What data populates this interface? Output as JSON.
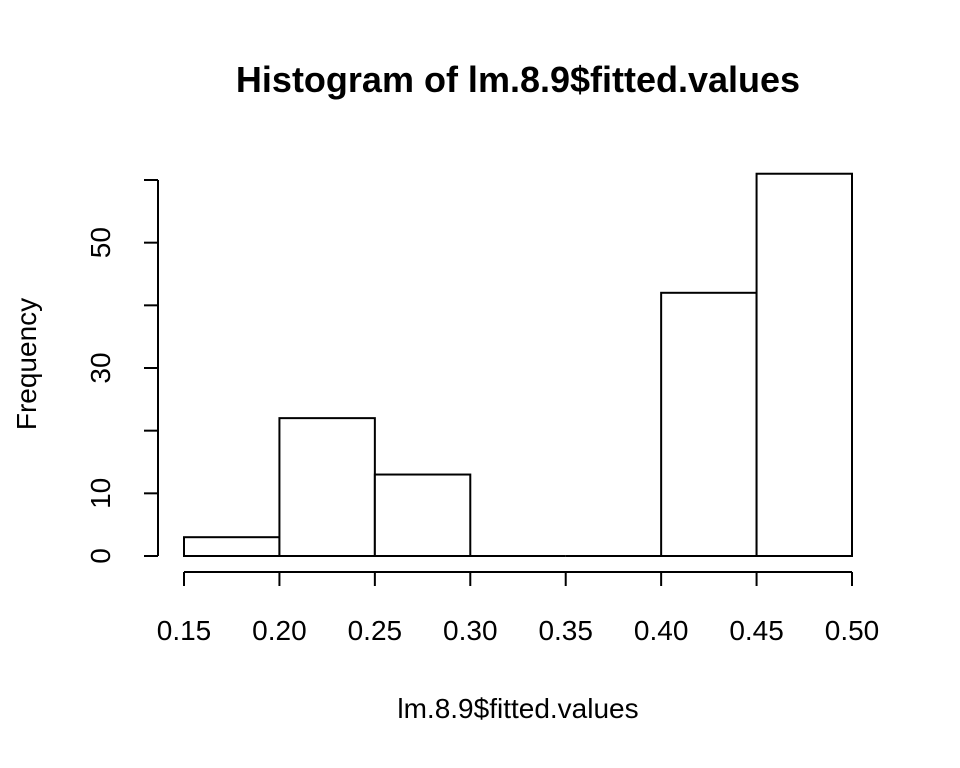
{
  "chart_data": {
    "type": "bar",
    "title": "Histogram of lm.8.9$fitted.values",
    "xlabel": "lm.8.9$fitted.values",
    "ylabel": "Frequency",
    "bins": [
      {
        "start": 0.15,
        "end": 0.2,
        "count": 3
      },
      {
        "start": 0.2,
        "end": 0.25,
        "count": 22
      },
      {
        "start": 0.25,
        "end": 0.3,
        "count": 13
      },
      {
        "start": 0.3,
        "end": 0.35,
        "count": 0
      },
      {
        "start": 0.35,
        "end": 0.4,
        "count": 0
      },
      {
        "start": 0.4,
        "end": 0.45,
        "count": 42
      },
      {
        "start": 0.45,
        "end": 0.5,
        "count": 61
      }
    ],
    "xlim": [
      0.15,
      0.5
    ],
    "ylim": [
      0,
      60
    ],
    "x_ticks": [
      0.15,
      0.2,
      0.25,
      0.3,
      0.35,
      0.4,
      0.45,
      0.5
    ],
    "x_tick_labels": [
      "0.15",
      "0.20",
      "0.25",
      "0.30",
      "0.35",
      "0.40",
      "0.45",
      "0.50"
    ],
    "y_ticks": [
      0,
      10,
      20,
      30,
      40,
      50,
      60
    ],
    "y_tick_labels": [
      "0",
      "10",
      "",
      "30",
      "",
      "50",
      ""
    ],
    "grid": false,
    "bar_fill": "#ffffff",
    "bar_stroke": "#000000"
  }
}
